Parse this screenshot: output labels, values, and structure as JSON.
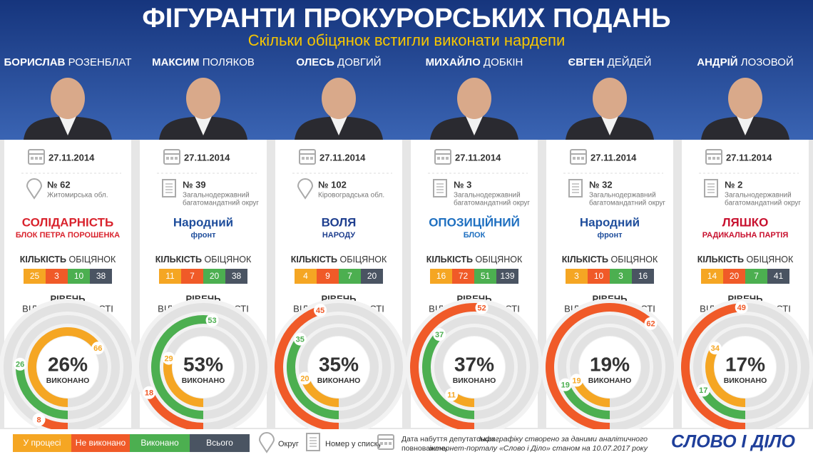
{
  "header": {
    "title": "ФІГУРАНТИ ПРОКУРОРСЬКИХ ПОДАНЬ",
    "subtitle": "Скільки обіцянок встигли виконати нардепи"
  },
  "labels": {
    "promises": [
      "КІЛЬКІСТЬ",
      "ОБІЦЯНОК"
    ],
    "responsibility": [
      "РІВЕНЬ",
      "ВІДПОВІДАЛЬНОСТІ"
    ],
    "done": "ВИКОНАНО"
  },
  "colors": [
    "#f5a623",
    "#f05a28",
    "#4caf50",
    "#4a5462"
  ],
  "people": [
    {
      "first": "БОРИСЛАВ",
      "last": "РОЗЕНБЛАТ",
      "date": "27.11.2014",
      "number": "№ 62",
      "district": [
        "Житомирська обл."
      ],
      "party": [
        "СОЛІДАРНІСТЬ",
        "БЛОК ПЕТРА ПОРОШЕНКА"
      ],
      "party_color": "#d9232d",
      "promises": [
        25,
        3,
        10,
        38
      ],
      "percent": "26%",
      "rings": [
        66,
        8,
        26
      ]
    },
    {
      "first": "МАКСИМ",
      "last": "ПОЛЯКОВ",
      "date": "27.11.2014",
      "number": "№ 39",
      "district": [
        "Загальнодержавний",
        "багатомандатний округ"
      ],
      "party": [
        "Народний",
        "фронт"
      ],
      "party_color": "#1f4e9c",
      "promises": [
        11,
        7,
        20,
        38
      ],
      "percent": "53%",
      "rings": [
        29,
        18,
        53
      ]
    },
    {
      "first": "ОЛЕСЬ",
      "last": "ДОВГИЙ",
      "date": "27.11.2014",
      "number": "№ 102",
      "district": [
        "Кіровоградська обл."
      ],
      "party": [
        "ВОЛЯ",
        "НАРОДУ"
      ],
      "party_color": "#1f3f8f",
      "promises": [
        4,
        9,
        7,
        20
      ],
      "percent": "35%",
      "rings": [
        20,
        45,
        35
      ]
    },
    {
      "first": "МИХАЙЛО",
      "last": "ДОБКІН",
      "date": "27.11.2014",
      "number": "№ 3",
      "district": [
        "Загальнодержавний",
        "багатомандатний округ"
      ],
      "party": [
        "ОПОЗИЦІЙНИЙ",
        "БЛОК"
      ],
      "party_color": "#1e6fc0",
      "promises": [
        16,
        72,
        51,
        139
      ],
      "percent": "37%",
      "rings": [
        11,
        52,
        37
      ]
    },
    {
      "first": "ЄВГЕН",
      "last": "ДЕЙДЕЙ",
      "date": "27.11.2014",
      "number": "№ 32",
      "district": [
        "Загальнодержавний",
        "багатомандатний округ"
      ],
      "party": [
        "Народний",
        "фронт"
      ],
      "party_color": "#1f4e9c",
      "promises": [
        3,
        10,
        3,
        16
      ],
      "percent": "19%",
      "rings": [
        19,
        62,
        19
      ]
    },
    {
      "first": "АНДРІЙ",
      "last": "ЛОЗОВОЙ",
      "date": "27.11.2014",
      "number": "№ 2",
      "district": [
        "Загальнодержавний",
        "багатомандатний округ"
      ],
      "party": [
        "ЛЯШКО",
        "РАДИКАЛЬНА ПАРТІЯ"
      ],
      "party_color": "#c8102e",
      "promises": [
        14,
        20,
        7,
        41
      ],
      "percent": "17%",
      "rings": [
        34,
        49,
        17
      ]
    }
  ],
  "legend": {
    "statuses": [
      "У процесі",
      "Не виконано",
      "Виконано",
      "Всього"
    ],
    "icons": [
      "Округ",
      "Номер у списку",
      [
        "Дата набуття депутатських",
        "повноважень"
      ]
    ]
  },
  "footer": {
    "source": [
      "Інфографіку створено за даними аналітичного",
      "інтернет-порталу «Слово і Діло» станом на 10.07.2017 року"
    ],
    "logo": "СЛОВО І ДІЛО"
  }
}
